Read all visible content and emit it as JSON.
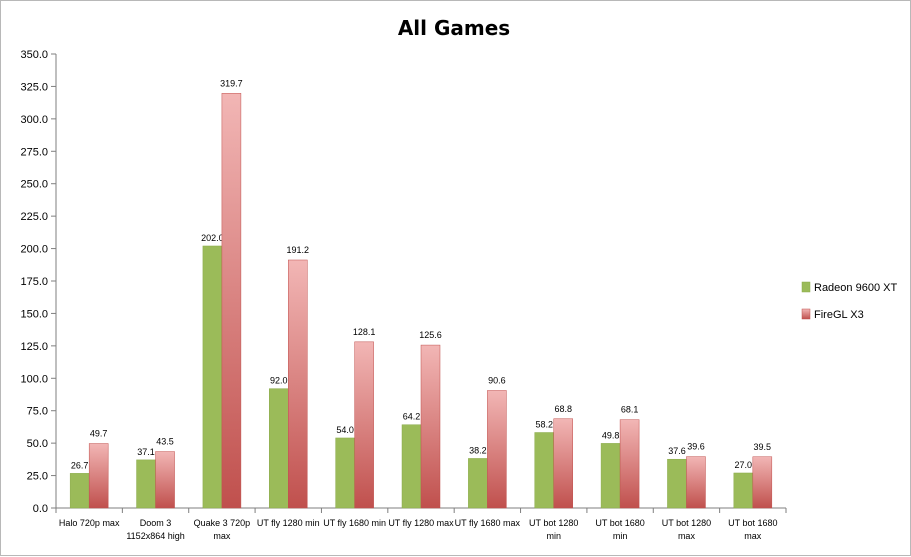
{
  "chart_data": {
    "type": "bar",
    "title": "All Games",
    "categories": [
      [
        "Halo 720p max"
      ],
      [
        "Doom 3",
        "1152x864 high"
      ],
      [
        "Quake 3 720p",
        "max"
      ],
      [
        "UT fly 1280 min"
      ],
      [
        "UT fly 1680 min"
      ],
      [
        "UT fly 1280 max"
      ],
      [
        "UT fly 1680 max"
      ],
      [
        "UT bot 1280",
        "min"
      ],
      [
        "UT bot 1680",
        "min"
      ],
      [
        "UT bot 1280",
        "max"
      ],
      [
        "UT bot 1680",
        "max"
      ]
    ],
    "series": [
      {
        "name": "Radeon 9600 XT",
        "color": "#9bbb59",
        "color_dark": "#8aaa4a",
        "values": [
          26.7,
          37.1,
          202.0,
          92.0,
          54.0,
          64.2,
          38.2,
          58.2,
          49.8,
          37.6,
          27.0
        ],
        "labels": [
          "26.7",
          "37.1",
          "202.0",
          "92.0",
          "54.0",
          "64.2",
          "38.2",
          "58.2",
          "49.8",
          "37.6",
          "27.0"
        ]
      },
      {
        "name": "FireGL X3",
        "color_top": "#f2b6b5",
        "color_bottom": "#c0504d",
        "values": [
          49.7,
          43.5,
          319.7,
          191.2,
          128.1,
          125.6,
          90.6,
          68.8,
          68.1,
          39.6,
          39.5
        ],
        "labels": [
          "49.7",
          "43.5",
          "319.7",
          "191.2",
          "128.1",
          "125.6",
          "90.6",
          "68.8",
          "68.1",
          "39.6",
          "39.5"
        ]
      }
    ],
    "ylim": [
      0,
      350
    ],
    "yticks": [
      "0.0",
      "25.0",
      "50.0",
      "75.0",
      "100.0",
      "125.0",
      "150.0",
      "175.0",
      "200.0",
      "225.0",
      "250.0",
      "275.0",
      "300.0",
      "325.0",
      "350.0"
    ],
    "grid": false,
    "legend": "right"
  }
}
